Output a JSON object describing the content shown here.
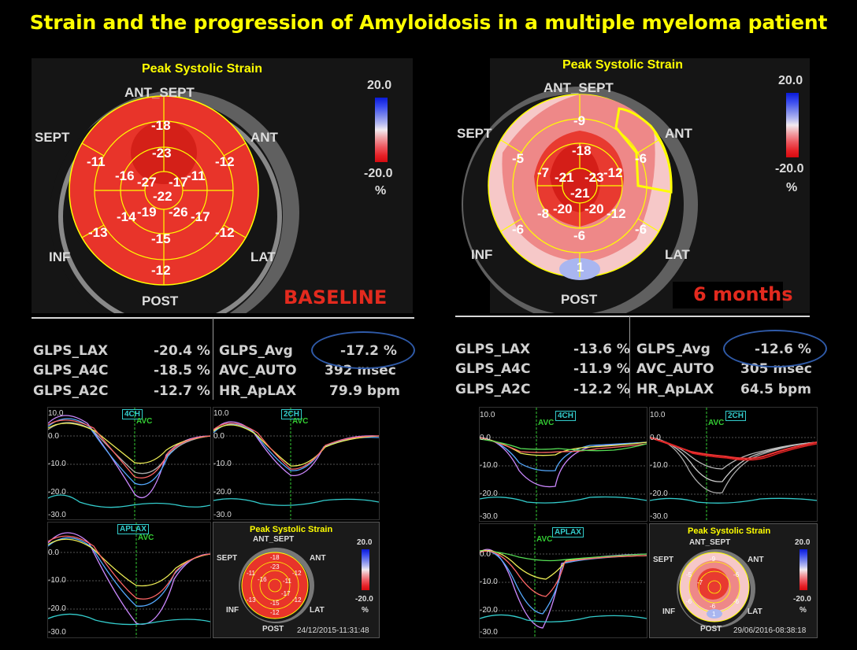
{
  "title": "Strain and the progression of Amyloidosis in a multiple myeloma patient",
  "baseline": {
    "bull_title": "Peak Systolic Strain",
    "walls": {
      "ant_sept": "ANT_SEPT",
      "sept": "SEPT",
      "ant": "ANT",
      "inf": "INF",
      "lat": "LAT",
      "post": "POST"
    },
    "segments": [
      "-18",
      "-11",
      "-12",
      "-23",
      "-16",
      "-27",
      "-17",
      "-11",
      "-22",
      "-14",
      "-19",
      "-26",
      "-17",
      "-13",
      "-12",
      "-15",
      "-12"
    ],
    "scale": {
      "top": "20.0",
      "bottom": "-20.0",
      "unit": "%"
    },
    "stage_label": "BASELINE",
    "metrics": {
      "glps_lax": {
        "label": "GLPS_LAX",
        "value": "-20.4 %"
      },
      "glps_a4c": {
        "label": "GLPS_A4C",
        "value": "-18.5 %"
      },
      "glps_a2c": {
        "label": "GLPS_A2C",
        "value": "-12.7 %"
      },
      "glps_avg": {
        "label": "GLPS_Avg",
        "value": "-17.2 %"
      },
      "avc_auto": {
        "label": "AVC_AUTO",
        "value": "392 msec"
      },
      "hr_aplax": {
        "label": "HR_ApLAX",
        "value": "79.9 bpm"
      }
    },
    "plots": {
      "labels": {
        "ch4": "4CH",
        "ch2": "2CH",
        "aplax": "APLAX",
        "avc": "AVC"
      },
      "ticks": [
        "10.0",
        "0.0",
        "-10.0",
        "-20.0",
        "-30.0"
      ],
      "timestamp": "24/12/2015-11:31:48",
      "thumb_segments": [
        "-18",
        "-11",
        "-12",
        "-23",
        "-16",
        "-17",
        "-11",
        "-13",
        "-12",
        "-15",
        "-12"
      ]
    }
  },
  "followup": {
    "bull_title": "Peak Systolic Strain",
    "walls": {
      "ant_sept": "ANT_SEPT",
      "sept": "SEPT",
      "ant": "ANT",
      "inf": "INF",
      "lat": "LAT",
      "post": "POST"
    },
    "segments": [
      "-9",
      "-5",
      "-6",
      "-18",
      "-7",
      "-21",
      "-23",
      "-12",
      "-21",
      "-8",
      "-20",
      "-20",
      "-12",
      "-6",
      "-6",
      "-6",
      "1"
    ],
    "scale": {
      "top": "20.0",
      "bottom": "-20.0",
      "unit": "%"
    },
    "stage_label": "6 months",
    "metrics": {
      "glps_lax": {
        "label": "GLPS_LAX",
        "value": "-13.6 %"
      },
      "glps_a4c": {
        "label": "GLPS_A4C",
        "value": "-11.9 %"
      },
      "glps_a2c": {
        "label": "GLPS_A2C",
        "value": "-12.2 %"
      },
      "glps_avg": {
        "label": "GLPS_Avg",
        "value": "-12.6 %"
      },
      "avc_auto": {
        "label": "AVC_AUTO",
        "value": "305 msec"
      },
      "hr_aplax": {
        "label": "HR_ApLAX",
        "value": "64.5 bpm"
      }
    },
    "plots": {
      "labels": {
        "ch4": "4CH",
        "ch2": "2CH",
        "aplax": "APLAX",
        "avc": "AVC"
      },
      "ticks": [
        "10.0",
        "0.0",
        "-10.0",
        "-20.0",
        "-30.0"
      ],
      "timestamp": "29/06/2016-08:38:18",
      "thumb_segments": [
        "-9",
        "-5",
        "-6",
        "-7",
        "-6",
        "-6",
        "-6",
        "1"
      ]
    }
  },
  "colors": {
    "title": "#ffff00",
    "stage": "#e32a1e",
    "oval": "#2f5aa8",
    "segment_red": "#e8342a",
    "deep_red": "#d42018"
  }
}
